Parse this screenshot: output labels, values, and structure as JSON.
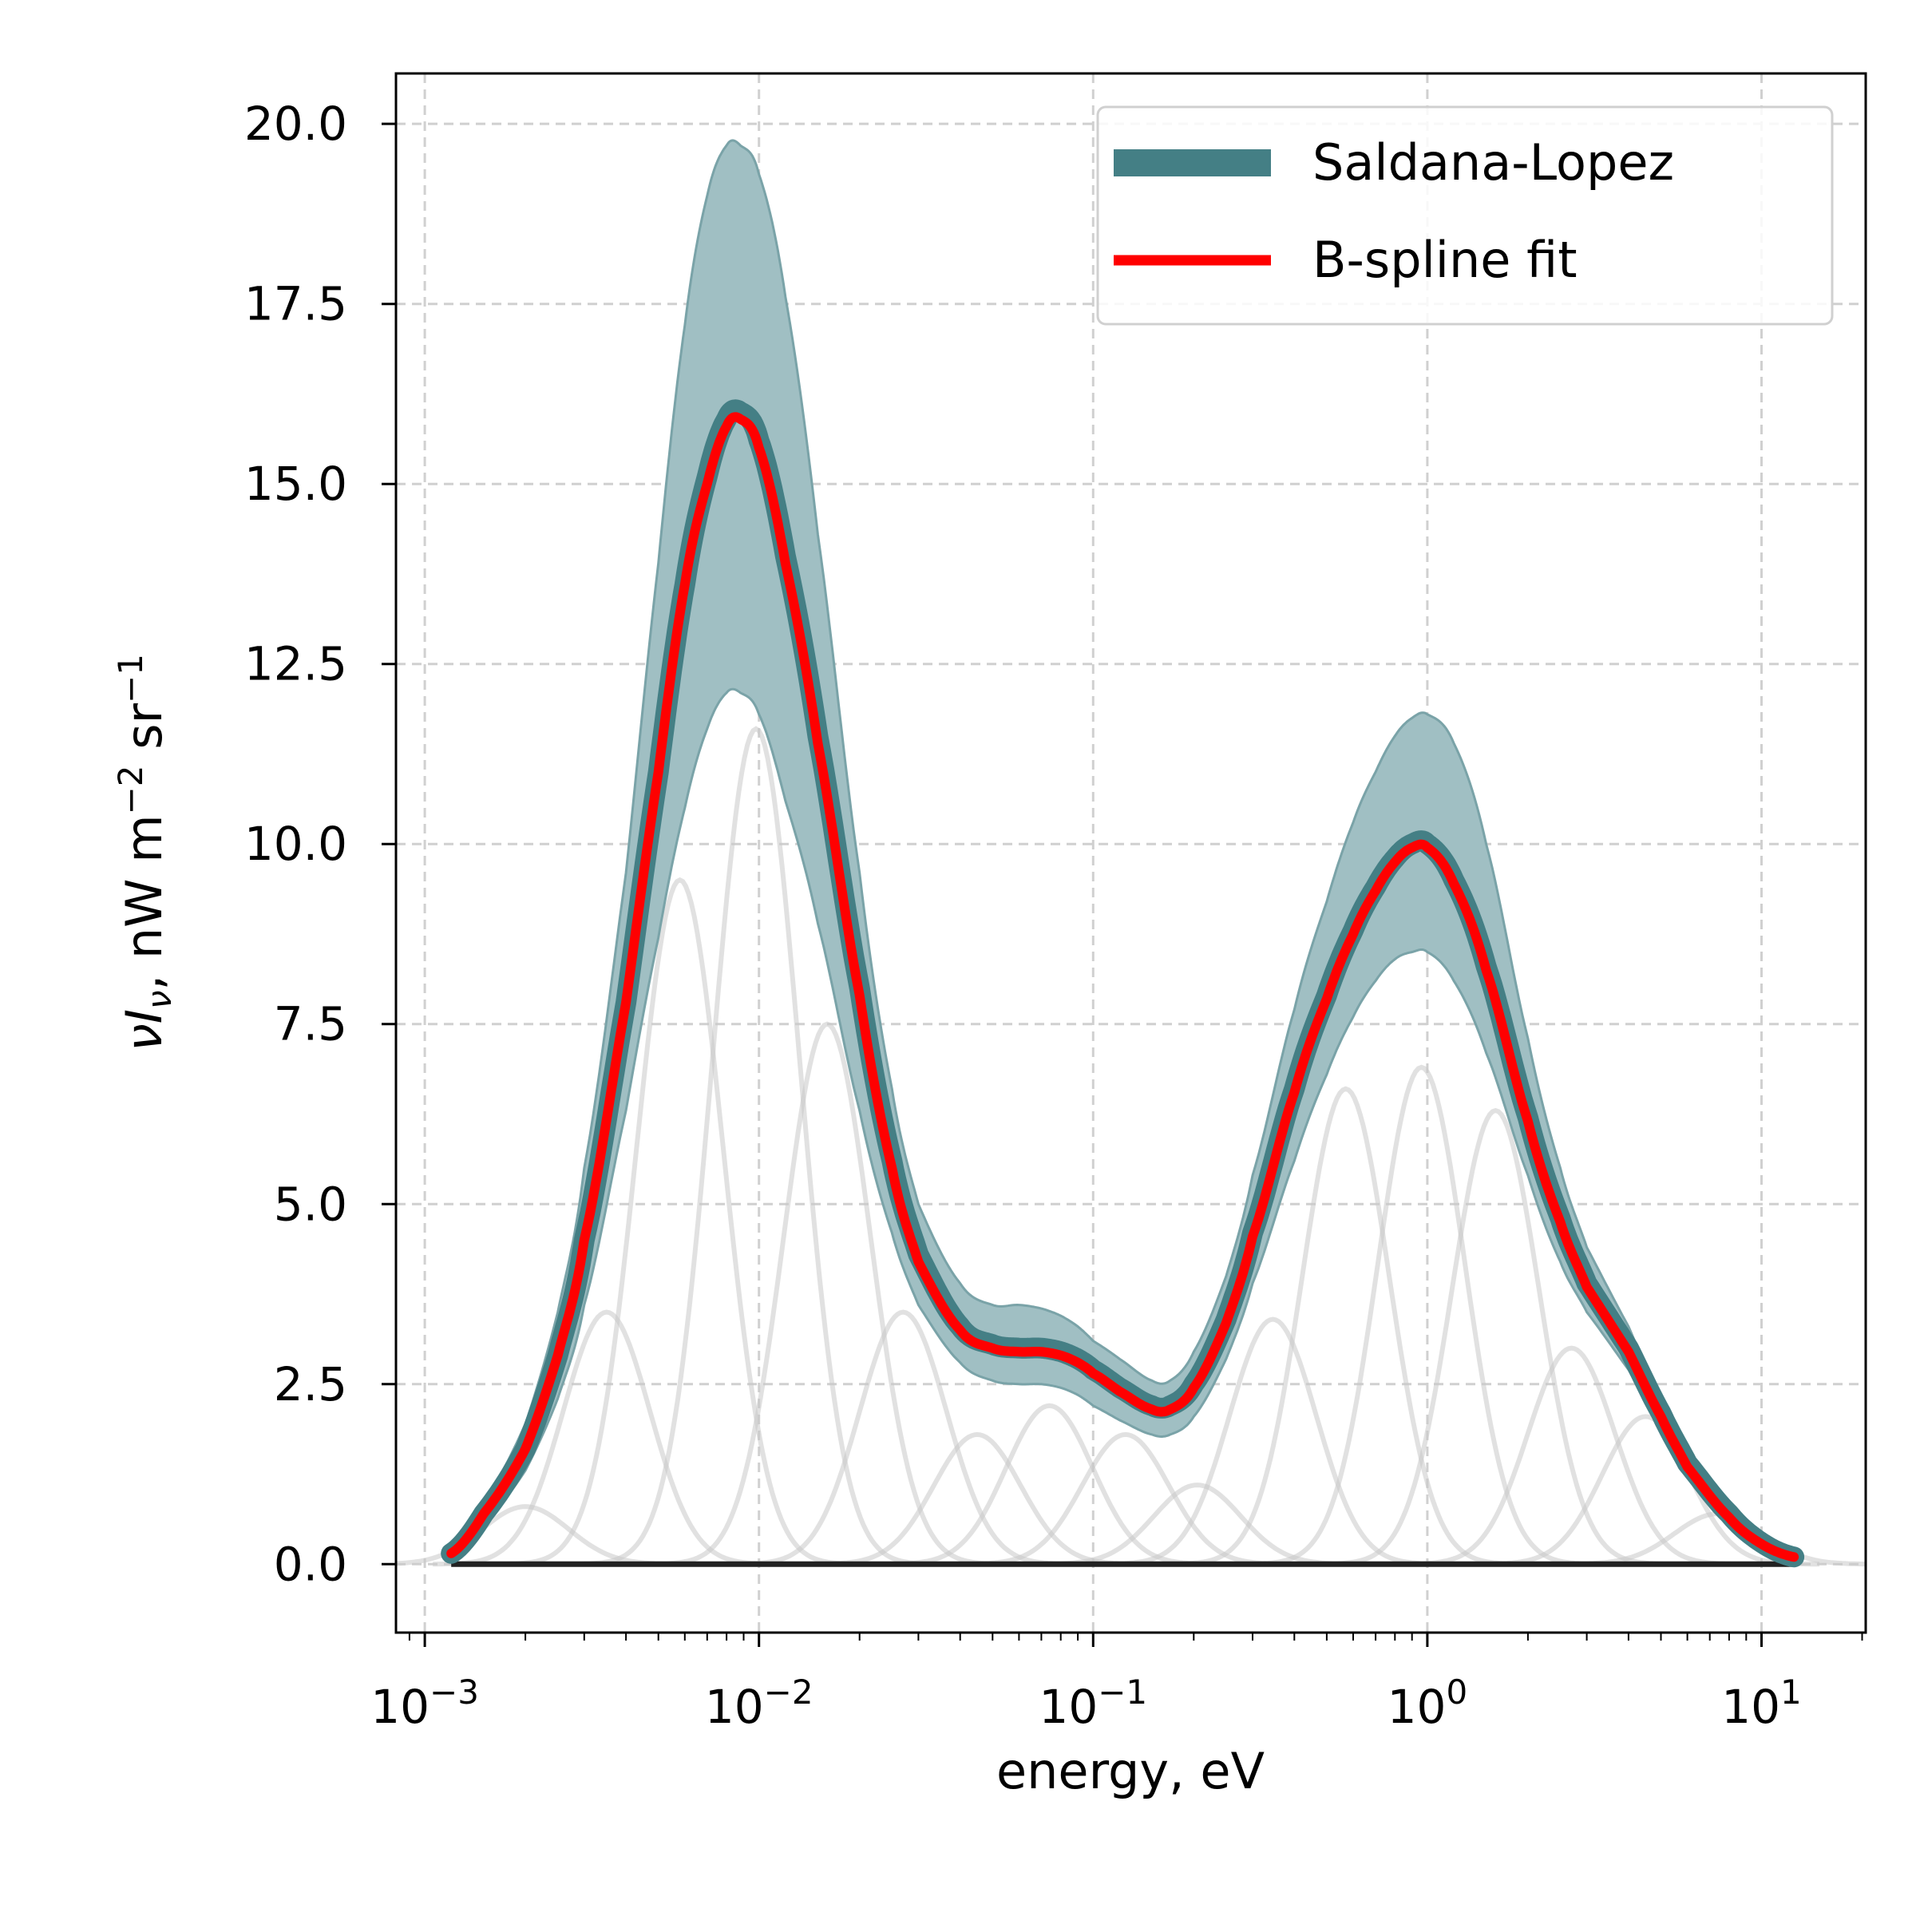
{
  "chart_data": {
    "type": "line",
    "xlabel": "energy, eV",
    "ylabel_parts": [
      "νI",
      "ν",
      ", nW m",
      "−2",
      " sr",
      "−1"
    ],
    "x_scale": "log",
    "xlim": [
      0.00082,
      20.5
    ],
    "ylim": [
      -0.95,
      20.7
    ],
    "grid": true,
    "legend_position": "top-right",
    "x_ticks": [
      {
        "value": 0.001,
        "base": "10",
        "exp": "−3"
      },
      {
        "value": 0.01,
        "base": "10",
        "exp": "−2"
      },
      {
        "value": 0.1,
        "base": "10",
        "exp": "−1"
      },
      {
        "value": 1,
        "base": "10",
        "exp": "0"
      },
      {
        "value": 10,
        "base": "10",
        "exp": "1"
      }
    ],
    "y_ticks": [
      "0.0",
      "2.5",
      "5.0",
      "7.5",
      "10.0",
      "12.5",
      "15.0",
      "17.5",
      "20.0"
    ],
    "series": [
      {
        "name": "Saldana-Lopez",
        "color": "#447f85",
        "band_color": "#a0bfc3",
        "x": [
          0.0012,
          0.0015,
          0.002,
          0.0025,
          0.003,
          0.004,
          0.005,
          0.006,
          0.007,
          0.008,
          0.0088,
          0.01,
          0.012,
          0.015,
          0.02,
          0.025,
          0.03,
          0.04,
          0.05,
          0.06,
          0.07,
          0.08,
          0.09,
          0.1,
          0.12,
          0.15,
          0.17,
          0.2,
          0.25,
          0.3,
          0.4,
          0.5,
          0.6,
          0.7,
          0.8,
          0.9,
          1.0,
          1.2,
          1.5,
          2.0,
          2.5,
          3.0,
          4.0,
          5.0,
          6.0,
          8.0,
          10.0,
          12.5
        ],
        "values": [
          0.15,
          0.7,
          1.6,
          2.9,
          4.5,
          7.8,
          11.0,
          13.6,
          15.1,
          15.9,
          16.0,
          15.6,
          14.0,
          11.5,
          8.0,
          5.6,
          4.3,
          3.3,
          3.05,
          3.0,
          3.0,
          2.95,
          2.85,
          2.7,
          2.45,
          2.2,
          2.2,
          2.5,
          3.4,
          4.6,
          6.6,
          7.9,
          8.8,
          9.4,
          9.8,
          10.0,
          10.0,
          9.5,
          8.3,
          6.2,
          4.8,
          3.9,
          3.0,
          2.1,
          1.4,
          0.7,
          0.3,
          0.1
        ],
        "lower": [
          0.1,
          0.55,
          1.3,
          2.3,
          3.6,
          6.3,
          8.7,
          10.5,
          11.6,
          12.1,
          12.1,
          11.8,
          10.6,
          8.9,
          6.3,
          4.6,
          3.6,
          2.8,
          2.55,
          2.5,
          2.5,
          2.45,
          2.35,
          2.2,
          2.0,
          1.8,
          1.8,
          2.05,
          2.85,
          3.9,
          5.6,
          6.8,
          7.6,
          8.1,
          8.4,
          8.5,
          8.5,
          8.1,
          7.1,
          5.4,
          4.2,
          3.5,
          2.7,
          1.9,
          1.25,
          0.6,
          0.25,
          0.08
        ],
        "upper": [
          0.2,
          0.85,
          1.95,
          3.5,
          5.5,
          9.6,
          13.9,
          17.2,
          19.0,
          19.7,
          19.7,
          19.3,
          17.6,
          14.3,
          9.6,
          6.6,
          5.0,
          3.9,
          3.6,
          3.6,
          3.55,
          3.45,
          3.3,
          3.1,
          2.85,
          2.55,
          2.55,
          2.95,
          4.0,
          5.4,
          7.7,
          9.2,
          10.3,
          11.0,
          11.5,
          11.75,
          11.8,
          11.4,
          10.0,
          7.3,
          5.5,
          4.4,
          3.3,
          2.3,
          1.55,
          0.8,
          0.35,
          0.12
        ]
      },
      {
        "name": "B-spline fit",
        "color": "#ff0000",
        "x": [
          0.0012,
          0.0015,
          0.002,
          0.0025,
          0.003,
          0.004,
          0.005,
          0.006,
          0.007,
          0.008,
          0.0088,
          0.01,
          0.012,
          0.015,
          0.02,
          0.025,
          0.03,
          0.04,
          0.05,
          0.06,
          0.07,
          0.08,
          0.09,
          0.1,
          0.12,
          0.15,
          0.17,
          0.2,
          0.25,
          0.3,
          0.4,
          0.5,
          0.6,
          0.7,
          0.8,
          0.9,
          1.0,
          1.2,
          1.5,
          2.0,
          2.5,
          3.0,
          4.0,
          5.0,
          6.0,
          8.0,
          10.0,
          12.5
        ],
        "values": [
          0.15,
          0.7,
          1.6,
          2.9,
          4.5,
          7.8,
          11.0,
          13.6,
          15.0,
          15.8,
          15.9,
          15.5,
          13.9,
          11.4,
          7.9,
          5.5,
          4.2,
          3.25,
          3.0,
          2.95,
          2.95,
          2.9,
          2.8,
          2.65,
          2.4,
          2.15,
          2.15,
          2.45,
          3.35,
          4.55,
          6.55,
          7.85,
          8.75,
          9.35,
          9.75,
          9.95,
          9.95,
          9.45,
          8.25,
          6.15,
          4.75,
          3.85,
          2.95,
          2.05,
          1.35,
          0.65,
          0.28,
          0.1
        ]
      }
    ],
    "basis_components": {
      "color": "#c8c8c8",
      "peaks": [
        {
          "center": 0.002,
          "amplitude": 0.8
        },
        {
          "center": 0.0035,
          "amplitude": 3.5
        },
        {
          "center": 0.0058,
          "amplitude": 9.5
        },
        {
          "center": 0.0098,
          "amplitude": 11.6
        },
        {
          "center": 0.016,
          "amplitude": 7.5
        },
        {
          "center": 0.027,
          "amplitude": 3.5
        },
        {
          "center": 0.045,
          "amplitude": 1.8
        },
        {
          "center": 0.074,
          "amplitude": 2.2
        },
        {
          "center": 0.125,
          "amplitude": 1.8
        },
        {
          "center": 0.205,
          "amplitude": 1.1
        },
        {
          "center": 0.345,
          "amplitude": 3.4
        },
        {
          "center": 0.57,
          "amplitude": 6.6
        },
        {
          "center": 0.96,
          "amplitude": 6.9
        },
        {
          "center": 1.6,
          "amplitude": 6.3
        },
        {
          "center": 2.7,
          "amplitude": 3.0
        },
        {
          "center": 4.5,
          "amplitude": 2.05
        },
        {
          "center": 7.4,
          "amplitude": 0.7
        }
      ],
      "log10_width": 0.13
    },
    "baseline": {
      "value": 0,
      "color": "#222222"
    }
  }
}
